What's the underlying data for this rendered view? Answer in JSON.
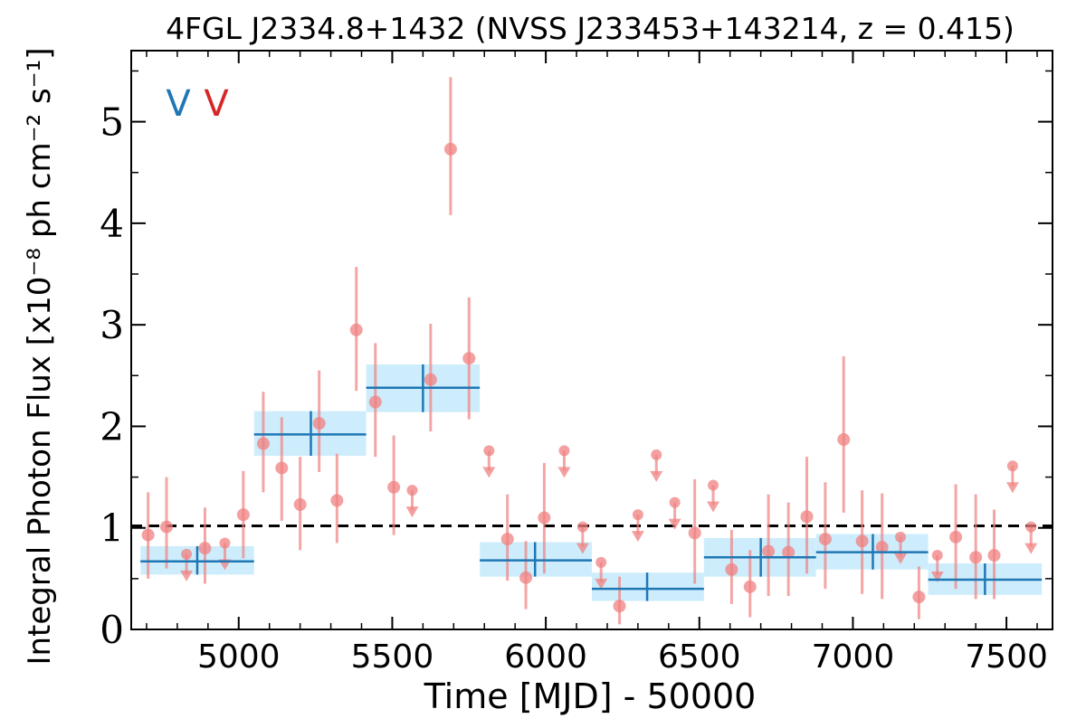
{
  "chart_data": {
    "type": "scatter",
    "title": "4FGL J2334.8+1432 (NVSS J233453+143214, z = 0.415)",
    "xlabel": "Time [MJD] - 50000",
    "ylabel": "Integral Photon Flux [x10⁻⁸ ph cm⁻² s⁻¹]",
    "xlim": [
      4650,
      7650
    ],
    "ylim": [
      0,
      5.7
    ],
    "xticks": [
      5000,
      5500,
      6000,
      6500,
      7000,
      7500
    ],
    "yticks": [
      0,
      1,
      2,
      3,
      4,
      5
    ],
    "grid": false,
    "markers": [
      {
        "label": "V",
        "color": "#1f77b4"
      },
      {
        "label": "V",
        "color": "#d62728"
      }
    ],
    "reference_level": 1.02,
    "colors": {
      "points": "#f08080",
      "bins": "#1f77b4",
      "bin_band": "#c6eafc"
    },
    "series": [
      {
        "kind": "detections",
        "points": [
          {
            "x": 4705,
            "y": 0.93,
            "lo": 0.5,
            "hi": 1.35
          },
          {
            "x": 4765,
            "y": 1.01,
            "lo": 0.6,
            "hi": 1.5
          },
          {
            "x": 4890,
            "y": 0.8,
            "lo": 0.45,
            "hi": 1.2
          },
          {
            "x": 5015,
            "y": 1.13,
            "lo": 0.7,
            "hi": 1.56
          },
          {
            "x": 5080,
            "y": 1.83,
            "lo": 1.35,
            "hi": 2.34
          },
          {
            "x": 5140,
            "y": 1.59,
            "lo": 1.07,
            "hi": 2.09
          },
          {
            "x": 5200,
            "y": 1.23,
            "lo": 0.78,
            "hi": 1.7
          },
          {
            "x": 5262,
            "y": 2.03,
            "lo": 1.55,
            "hi": 2.55
          },
          {
            "x": 5320,
            "y": 1.27,
            "lo": 0.85,
            "hi": 1.73
          },
          {
            "x": 5383,
            "y": 2.95,
            "lo": 2.35,
            "hi": 3.57
          },
          {
            "x": 5445,
            "y": 2.24,
            "lo": 1.7,
            "hi": 2.82
          },
          {
            "x": 5505,
            "y": 1.4,
            "lo": 0.93,
            "hi": 1.91
          },
          {
            "x": 5625,
            "y": 2.46,
            "lo": 1.95,
            "hi": 3.01
          },
          {
            "x": 5690,
            "y": 4.73,
            "lo": 4.08,
            "hi": 5.44
          },
          {
            "x": 5750,
            "y": 2.67,
            "lo": 2.07,
            "hi": 3.27
          },
          {
            "x": 5875,
            "y": 0.89,
            "lo": 0.48,
            "hi": 1.33
          },
          {
            "x": 5935,
            "y": 0.51,
            "lo": 0.2,
            "hi": 0.87
          },
          {
            "x": 5995,
            "y": 1.1,
            "lo": 0.55,
            "hi": 1.64
          },
          {
            "x": 6240,
            "y": 0.23,
            "lo": 0.05,
            "hi": 0.52
          },
          {
            "x": 6485,
            "y": 0.95,
            "lo": 0.45,
            "hi": 1.48
          },
          {
            "x": 6605,
            "y": 0.59,
            "lo": 0.25,
            "hi": 0.98
          },
          {
            "x": 6665,
            "y": 0.42,
            "lo": 0.12,
            "hi": 0.78
          },
          {
            "x": 6725,
            "y": 0.77,
            "lo": 0.33,
            "hi": 1.33
          },
          {
            "x": 6790,
            "y": 0.76,
            "lo": 0.33,
            "hi": 1.25
          },
          {
            "x": 6850,
            "y": 1.11,
            "lo": 0.55,
            "hi": 1.7
          },
          {
            "x": 6910,
            "y": 0.89,
            "lo": 0.4,
            "hi": 1.45
          },
          {
            "x": 6970,
            "y": 1.87,
            "lo": 1.15,
            "hi": 2.69
          },
          {
            "x": 7030,
            "y": 0.87,
            "lo": 0.35,
            "hi": 1.37
          },
          {
            "x": 7095,
            "y": 0.81,
            "lo": 0.3,
            "hi": 1.34
          },
          {
            "x": 7215,
            "y": 0.32,
            "lo": 0.1,
            "hi": 0.62
          },
          {
            "x": 7335,
            "y": 0.91,
            "lo": 0.4,
            "hi": 1.43
          },
          {
            "x": 7400,
            "y": 0.71,
            "lo": 0.3,
            "hi": 1.33
          },
          {
            "x": 7460,
            "y": 0.73,
            "lo": 0.3,
            "hi": 1.18
          }
        ]
      },
      {
        "kind": "upper_limits",
        "points": [
          {
            "x": 4830,
            "y": 0.74
          },
          {
            "x": 4955,
            "y": 0.85
          },
          {
            "x": 5565,
            "y": 1.37
          },
          {
            "x": 5815,
            "y": 1.76
          },
          {
            "x": 6060,
            "y": 1.76
          },
          {
            "x": 6120,
            "y": 1.01
          },
          {
            "x": 6180,
            "y": 0.66
          },
          {
            "x": 6300,
            "y": 1.13
          },
          {
            "x": 6360,
            "y": 1.72
          },
          {
            "x": 6420,
            "y": 1.25
          },
          {
            "x": 6545,
            "y": 1.42
          },
          {
            "x": 7155,
            "y": 0.91
          },
          {
            "x": 7275,
            "y": 0.73
          },
          {
            "x": 7520,
            "y": 1.61
          },
          {
            "x": 7580,
            "y": 1.01
          }
        ]
      },
      {
        "kind": "binned",
        "bins": [
          {
            "x0": 4680,
            "x1": 5050,
            "xc": 4865,
            "y": 0.67,
            "lo": 0.54,
            "hi": 0.82
          },
          {
            "x0": 5050,
            "x1": 5415,
            "xc": 5235,
            "y": 1.92,
            "lo": 1.71,
            "hi": 2.15
          },
          {
            "x0": 5415,
            "x1": 5785,
            "xc": 5600,
            "y": 2.38,
            "lo": 2.14,
            "hi": 2.61
          },
          {
            "x0": 5785,
            "x1": 6150,
            "xc": 5965,
            "y": 0.68,
            "lo": 0.52,
            "hi": 0.86
          },
          {
            "x0": 6150,
            "x1": 6515,
            "xc": 6330,
            "y": 0.4,
            "lo": 0.28,
            "hi": 0.56
          },
          {
            "x0": 6515,
            "x1": 6880,
            "xc": 6700,
            "y": 0.71,
            "lo": 0.52,
            "hi": 0.9
          },
          {
            "x0": 6880,
            "x1": 7245,
            "xc": 7065,
            "y": 0.76,
            "lo": 0.59,
            "hi": 0.94
          },
          {
            "x0": 7245,
            "x1": 7615,
            "xc": 7430,
            "y": 0.49,
            "lo": 0.34,
            "hi": 0.65
          }
        ]
      }
    ]
  }
}
